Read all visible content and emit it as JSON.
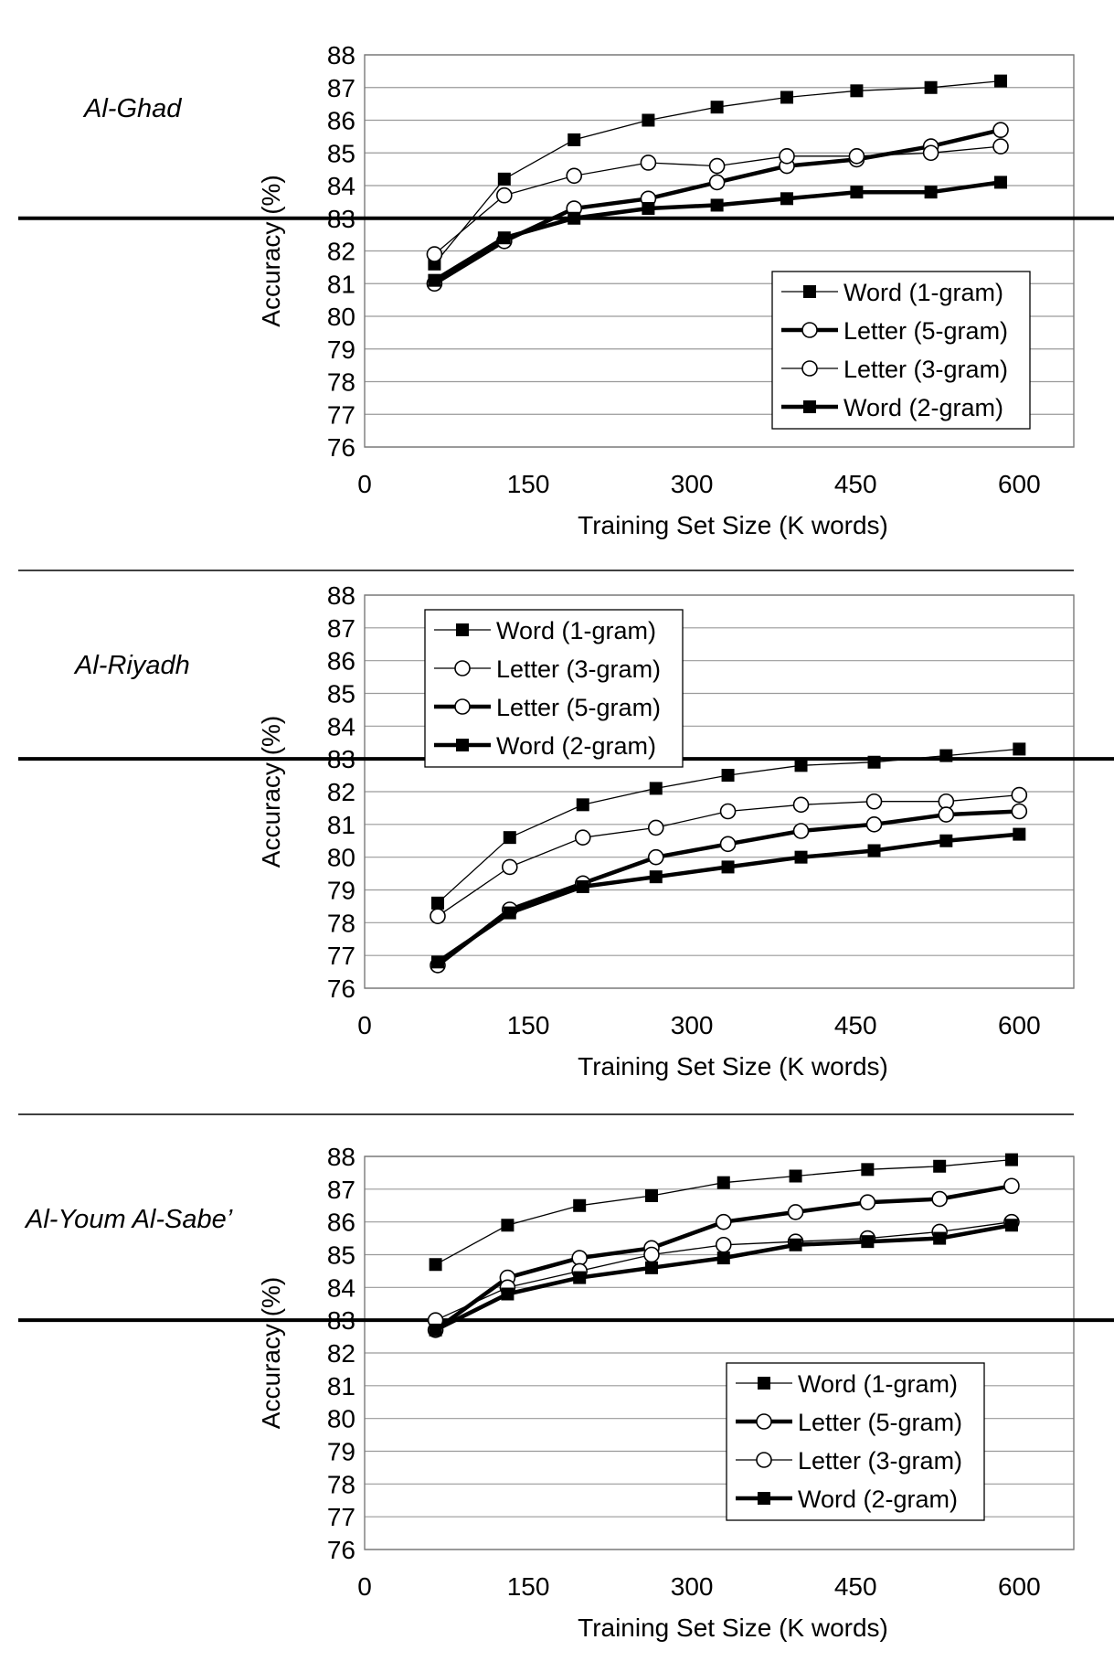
{
  "chart_data": [
    {
      "type": "line",
      "title": "Al-Ghad",
      "xlabel": "Training Set Size (K words)",
      "ylabel": "Accuracy (%)",
      "xlim": [
        0,
        650
      ],
      "ylim": [
        76,
        88
      ],
      "xticks": [
        0,
        150,
        300,
        450,
        600
      ],
      "yticks": [
        76,
        77,
        78,
        79,
        80,
        81,
        82,
        83,
        84,
        85,
        86,
        87,
        88
      ],
      "grid": true,
      "legend": "bottom-right",
      "reference_line": 83,
      "series": [
        {
          "name": "Word (1-gram)",
          "style": "thin-filled-square",
          "x": [
            64,
            128,
            192,
            260,
            323,
            387,
            451,
            519,
            583
          ],
          "y": [
            81.6,
            84.2,
            85.4,
            86.0,
            86.4,
            86.7,
            86.9,
            87.0,
            87.2
          ]
        },
        {
          "name": "Letter (5-gram)",
          "style": "thick-open-circle",
          "x": [
            64,
            128,
            192,
            260,
            323,
            387,
            451,
            519,
            583
          ],
          "y": [
            81.0,
            82.3,
            83.3,
            83.6,
            84.1,
            84.6,
            84.8,
            85.2,
            85.7
          ]
        },
        {
          "name": "Letter (3-gram)",
          "style": "thin-open-circle",
          "x": [
            64,
            128,
            192,
            260,
            323,
            387,
            451,
            519,
            583
          ],
          "y": [
            81.9,
            83.7,
            84.3,
            84.7,
            84.6,
            84.9,
            84.9,
            85.0,
            85.2
          ]
        },
        {
          "name": "Word (2-gram)",
          "style": "thick-filled-square",
          "x": [
            64,
            128,
            192,
            260,
            323,
            387,
            451,
            519,
            583
          ],
          "y": [
            81.1,
            82.4,
            83.0,
            83.3,
            83.4,
            83.6,
            83.8,
            83.8,
            84.1
          ]
        }
      ]
    },
    {
      "type": "line",
      "title": "Al-Riyadh",
      "xlabel": "Training Set Size (K words)",
      "ylabel": "Accuracy (%)",
      "xlim": [
        0,
        650
      ],
      "ylim": [
        76,
        88
      ],
      "xticks": [
        0,
        150,
        300,
        450,
        600
      ],
      "yticks": [
        76,
        77,
        78,
        79,
        80,
        81,
        82,
        83,
        84,
        85,
        86,
        87,
        88
      ],
      "grid": true,
      "legend": "top-left",
      "reference_line": 83,
      "series": [
        {
          "name": "Word (1-gram)",
          "style": "thin-filled-square",
          "x": [
            67,
            133,
            200,
            267,
            333,
            400,
            467,
            533,
            600
          ],
          "y": [
            78.6,
            80.6,
            81.6,
            82.1,
            82.5,
            82.8,
            82.9,
            83.1,
            83.3
          ]
        },
        {
          "name": "Letter (3-gram)",
          "style": "thin-open-circle",
          "x": [
            67,
            133,
            200,
            267,
            333,
            400,
            467,
            533,
            600
          ],
          "y": [
            78.2,
            79.7,
            80.6,
            80.9,
            81.4,
            81.6,
            81.7,
            81.7,
            81.9
          ]
        },
        {
          "name": "Letter (5-gram)",
          "style": "thick-open-circle",
          "x": [
            67,
            133,
            200,
            267,
            333,
            400,
            467,
            533,
            600
          ],
          "y": [
            76.7,
            78.4,
            79.2,
            80.0,
            80.4,
            80.8,
            81.0,
            81.3,
            81.4
          ]
        },
        {
          "name": "Word (2-gram)",
          "style": "thick-filled-square",
          "x": [
            67,
            133,
            200,
            267,
            333,
            400,
            467,
            533,
            600
          ],
          "y": [
            76.8,
            78.3,
            79.1,
            79.4,
            79.7,
            80.0,
            80.2,
            80.5,
            80.7
          ]
        }
      ]
    },
    {
      "type": "line",
      "title": "Al-Youm Al-Sabe’",
      "xlabel": "Training Set Size (K words)",
      "ylabel": "Accuracy (%)",
      "xlim": [
        0,
        650
      ],
      "ylim": [
        76,
        88
      ],
      "xticks": [
        0,
        150,
        300,
        450,
        600
      ],
      "yticks": [
        76,
        77,
        78,
        79,
        80,
        81,
        82,
        83,
        84,
        85,
        86,
        87,
        88
      ],
      "grid": true,
      "legend": "bottom-right",
      "reference_line": 83,
      "series": [
        {
          "name": "Word (1-gram)",
          "style": "thin-filled-square",
          "x": [
            65,
            131,
            197,
            263,
            329,
            395,
            461,
            527,
            593
          ],
          "y": [
            84.7,
            85.9,
            86.5,
            86.8,
            87.2,
            87.4,
            87.6,
            87.7,
            87.9
          ]
        },
        {
          "name": "Letter (5-gram)",
          "style": "thick-open-circle",
          "x": [
            65,
            131,
            197,
            263,
            329,
            395,
            461,
            527,
            593
          ],
          "y": [
            82.7,
            84.3,
            84.9,
            85.2,
            86.0,
            86.3,
            86.6,
            86.7,
            87.1
          ]
        },
        {
          "name": "Letter (3-gram)",
          "style": "thin-open-circle",
          "x": [
            65,
            131,
            197,
            263,
            329,
            395,
            461,
            527,
            593
          ],
          "y": [
            83.0,
            84.0,
            84.5,
            85.0,
            85.3,
            85.4,
            85.5,
            85.7,
            86.0
          ]
        },
        {
          "name": "Word (2-gram)",
          "style": "thick-filled-square",
          "x": [
            65,
            131,
            197,
            263,
            329,
            395,
            461,
            527,
            593
          ],
          "y": [
            82.7,
            83.8,
            84.3,
            84.6,
            84.9,
            85.3,
            85.4,
            85.5,
            85.9
          ]
        }
      ]
    }
  ]
}
